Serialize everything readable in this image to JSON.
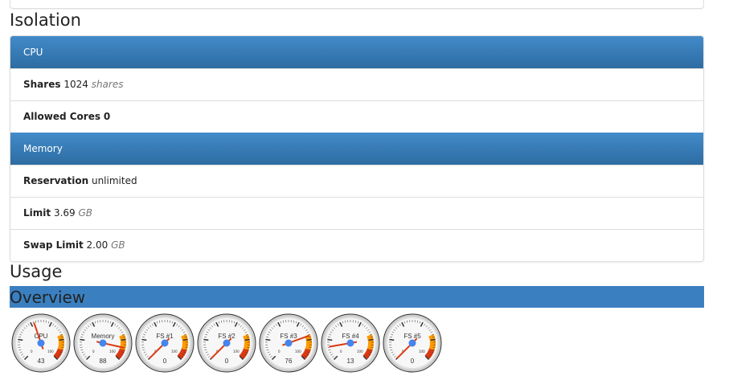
{
  "isolation": {
    "title": "Isolation",
    "cpu": {
      "header": "CPU",
      "shares_label": "Shares",
      "shares_value": "1024",
      "shares_unit": "shares",
      "cores_label": "Allowed Cores",
      "cores_value": "0"
    },
    "memory": {
      "header": "Memory",
      "reservation_label": "Reservation",
      "reservation_value": "unlimited",
      "limit_label": "Limit",
      "limit_value": "3.69",
      "limit_unit": "GB",
      "swap_label": "Swap Limit",
      "swap_value": "2.00",
      "swap_unit": "GB"
    }
  },
  "usage": {
    "title": "Usage",
    "overview": "Overview",
    "gauge_min": "0",
    "gauge_max": "100",
    "colors": {
      "yellow": "#ff9900",
      "red": "#dc3912",
      "needle": "#dc3912",
      "hub": "#4684ee"
    },
    "gauges": [
      {
        "label": "CPU",
        "value": 43
      },
      {
        "label": "Memory",
        "value": 88
      },
      {
        "label": "FS #1",
        "value": 0
      },
      {
        "label": "FS #2",
        "value": 0
      },
      {
        "label": "FS #3",
        "value": 76
      },
      {
        "label": "FS #4",
        "value": 13
      },
      {
        "label": "FS #5",
        "value": 0
      }
    ]
  }
}
